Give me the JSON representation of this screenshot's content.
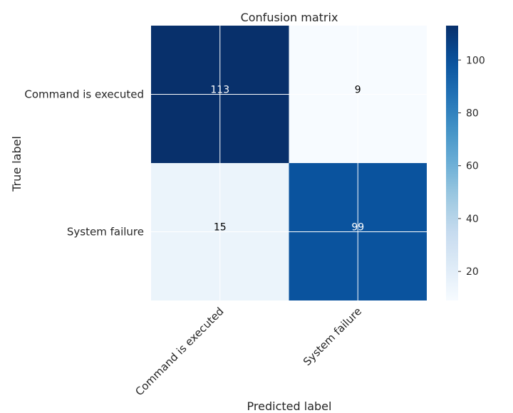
{
  "chart_data": {
    "type": "heatmap",
    "title": "Confusion matrix",
    "xlabel": "Predicted label",
    "ylabel": "True label",
    "x_categories": [
      "Command is executed",
      "System failure"
    ],
    "y_categories": [
      "Command is executed",
      "System failure"
    ],
    "values": [
      [
        113,
        9
      ],
      [
        15,
        99
      ]
    ],
    "colormap": "Blues",
    "colorbar": {
      "min": 9,
      "max": 113,
      "ticks": [
        20,
        40,
        60,
        80,
        100
      ]
    },
    "grid": true,
    "colors": {
      "colormap_low": "#f7fbff",
      "colormap_high": "#08306b",
      "text_on_dark": "#ffffff",
      "text_on_light": "#000000",
      "axis_text": "#262626"
    }
  }
}
